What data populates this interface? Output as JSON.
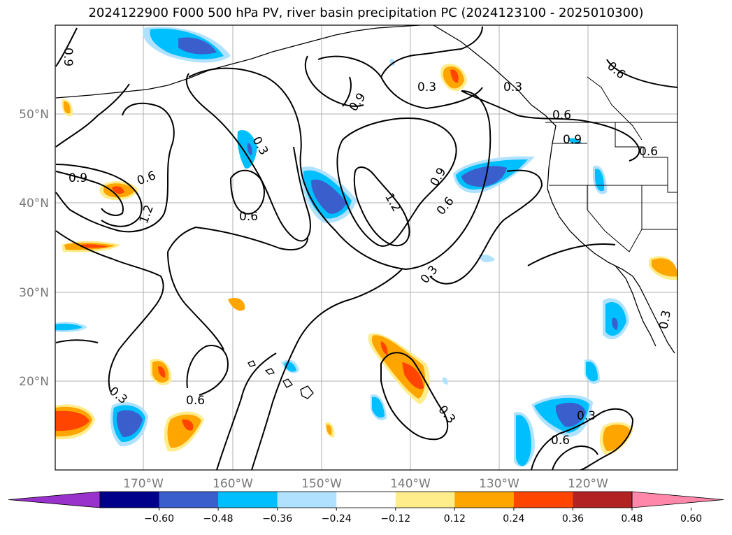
{
  "title": "2024122900 F000 500 hPa PV, river basin precipitation PC (2024123100 - 2025010300)",
  "lat_ticks": [
    "50°N",
    "40°N",
    "30°N",
    "20°N"
  ],
  "lon_ticks": [
    "170°W",
    "160°W",
    "150°W",
    "140°W",
    "130°W",
    "120°W"
  ],
  "colorbar": {
    "colors": [
      "#9932cc",
      "#00008b",
      "#3a5fcd",
      "#00bfff",
      "#b0e2ff",
      "#ffffff",
      "#ffec8b",
      "#ffa500",
      "#ff4500",
      "#b22222",
      "#ff88aa"
    ],
    "tick_labels": [
      "−0.60",
      "−0.48",
      "−0.36",
      "−0.24",
      "−0.12",
      "0.12",
      "0.24",
      "0.36",
      "0.48",
      "0.60"
    ]
  },
  "contour_labels": [
    "0.9",
    "0.3",
    "0.9",
    "1.2",
    "0.6",
    "0.6",
    "0.3",
    "0.6",
    "0.9",
    "1.2",
    "0.9",
    "0.6",
    "0.3",
    "0.6",
    "0.3",
    "0.6",
    "0.3",
    "0.3",
    "0.6",
    "0.3",
    "0.9",
    "0.6",
    "0.3"
  ],
  "map_layers": [
    "coastlines",
    "country borders",
    "state borders",
    "gridlines",
    "pv contours",
    "precipitation pc shading"
  ]
}
